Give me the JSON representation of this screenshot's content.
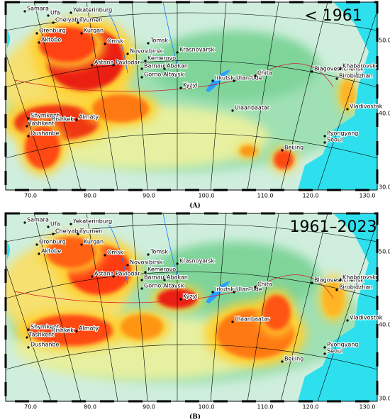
{
  "panels": [
    {
      "title": "< 1961",
      "caption": "(A)"
    },
    {
      "title": "1961–2023",
      "caption": "(B)"
    }
  ],
  "cities": [
    "Samara",
    "Ufa",
    "Yekaterinburg",
    "Chelyabinsk",
    "Tyumen",
    "Orenburg",
    "Kurgan",
    "Aktobe",
    "Omsk",
    "Tomsk",
    "Novosibirsk",
    "Krasnoyarsk",
    "Kemerovo",
    "Astana",
    "Pavlodar",
    "Barnaul",
    "Abakan",
    "Gorno-Altaysk",
    "Kyzyl",
    "Irkutsk",
    "Ulan-Ude",
    "Chita",
    "Blagoveshchensk",
    "Khabarovsk",
    "Birobidzhan",
    "Ulaanbaatar",
    "Vladivostok",
    "Shymkent",
    "Bishkek",
    "Almaty",
    "Tashkent",
    "Dushanbe",
    "Beijing",
    "Pyongyang",
    "Seoul"
  ],
  "longitude_labels": [
    "70.0",
    "80.0",
    "90.0",
    "100.0",
    "110.0",
    "120.0",
    "130.0"
  ],
  "latitude_labels": [
    "50.0",
    "40.0",
    "30.0"
  ]
}
